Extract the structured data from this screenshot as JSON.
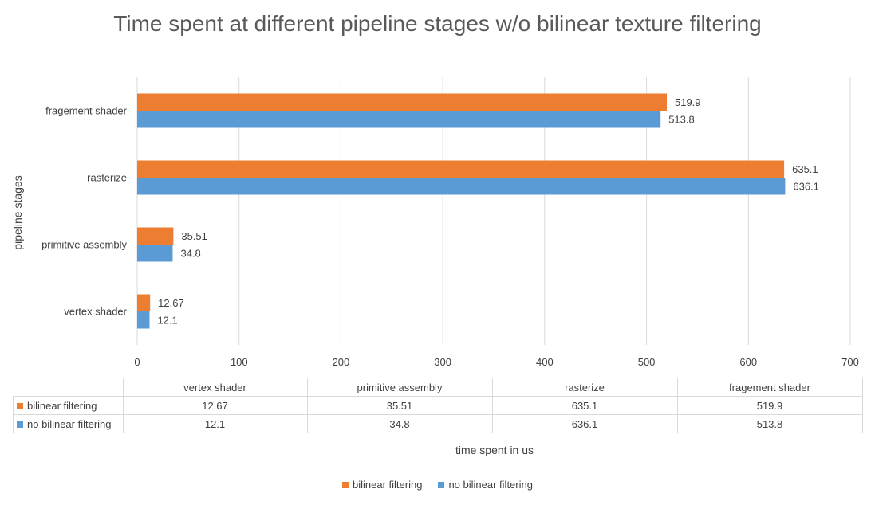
{
  "chart_data": {
    "type": "bar",
    "orientation": "horizontal",
    "title": "Time spent at different pipeline stages w/o bilinear texture filtering",
    "xlabel": "time spent in us",
    "ylabel": "pipeline stages",
    "categories": [
      "vertex shader",
      "primitive assembly",
      "rasterize",
      "fragement shader"
    ],
    "series": [
      {
        "name": "bilinear filtering",
        "color": "#ed7d31",
        "values": [
          12.67,
          35.51,
          635.1,
          519.9
        ],
        "labels": [
          "12.67",
          "35.51",
          "635.1",
          "519.9"
        ]
      },
      {
        "name": "no bilinear filtering",
        "color": "#5b9bd5",
        "values": [
          12.1,
          34.8,
          636.1,
          513.8
        ],
        "labels": [
          "12.1",
          "34.8",
          "636.1",
          "513.8"
        ]
      }
    ],
    "xlim": [
      0,
      700
    ],
    "xticks": [
      "0",
      "100",
      "200",
      "300",
      "400",
      "500",
      "600",
      "700"
    ],
    "grid": true,
    "legend_position": "bottom",
    "data_table": true
  }
}
